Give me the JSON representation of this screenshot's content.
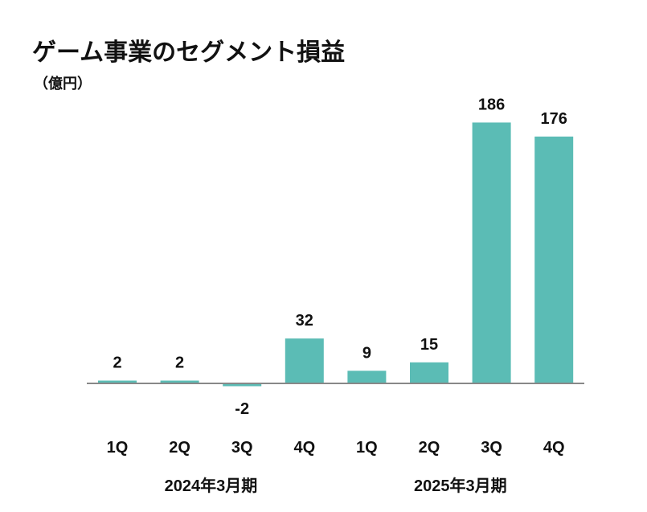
{
  "chart_data": {
    "type": "bar",
    "title": "ゲーム事業のセグメント損益",
    "unit": "（億円）",
    "categories": [
      "1Q",
      "2Q",
      "3Q",
      "4Q",
      "1Q",
      "2Q",
      "3Q",
      "4Q"
    ],
    "groups": [
      {
        "label": "2024年3月期",
        "categories": [
          "1Q",
          "2Q",
          "3Q",
          "4Q"
        ]
      },
      {
        "label": "2025年3月期",
        "categories": [
          "1Q",
          "2Q",
          "3Q",
          "4Q"
        ]
      }
    ],
    "values": [
      2,
      2,
      -2,
      32,
      9,
      15,
      186,
      176
    ],
    "bar_color": "#5bbcb5",
    "axis_color": "#888888",
    "grid": false,
    "legend": "none"
  }
}
